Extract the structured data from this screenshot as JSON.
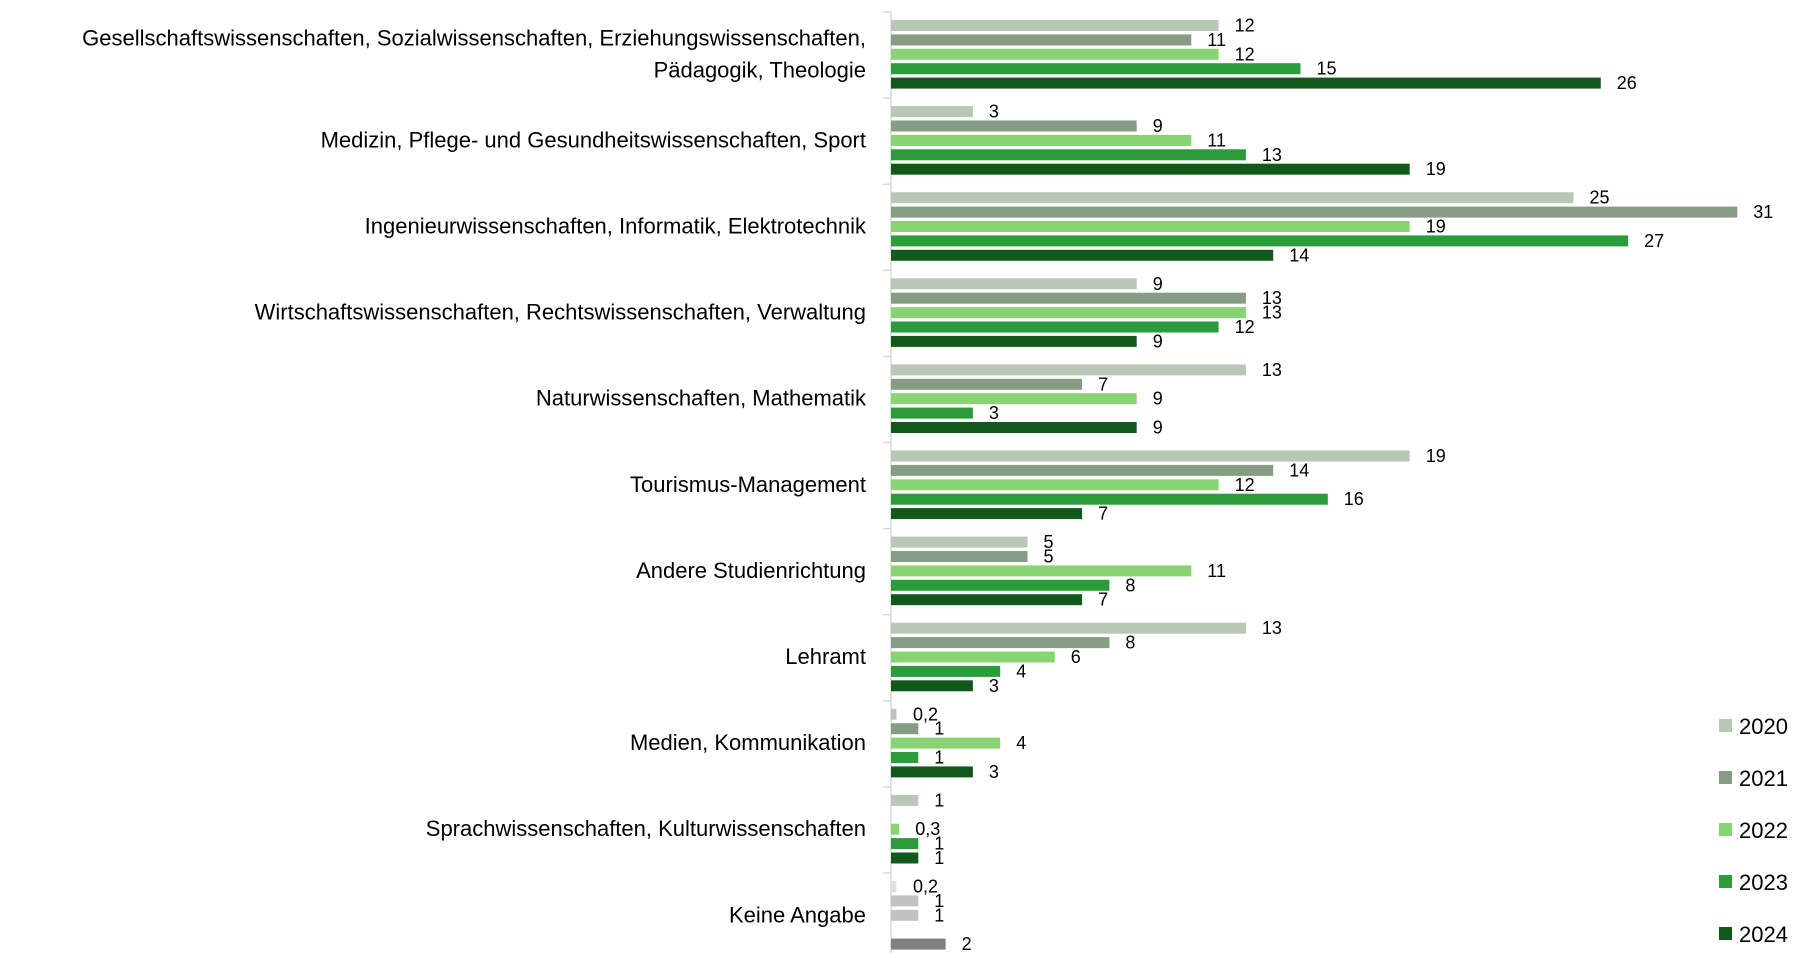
{
  "chart_data": {
    "type": "bar",
    "orientation": "horizontal",
    "grid": false,
    "legend_position": "bottom-right",
    "categories": [
      [
        "Gesellschaftswissenschaften, Sozialwissenschaften, Erziehungswissenschaften,",
        "Pädagogik, Theologie"
      ],
      [
        "Medizin, Pflege- und Gesundheitswissenschaften, Sport"
      ],
      [
        "Ingenieurwissenschaften, Informatik, Elektrotechnik"
      ],
      [
        "Wirtschaftswissenschaften, Rechtswissenschaften, Verwaltung"
      ],
      [
        "Naturwissenschaften, Mathematik"
      ],
      [
        "Tourismus-Management"
      ],
      [
        "Andere Studienrichtung"
      ],
      [
        "Lehramt"
      ],
      [
        "Medien, Kommunikation"
      ],
      [
        "Sprachwissenschaften, Kulturwissenschaften"
      ],
      [
        "Keine Angabe"
      ]
    ],
    "series": [
      {
        "name": "2020",
        "color": "#b9c7b6",
        "values": [
          12,
          3,
          25,
          9,
          13,
          19,
          5,
          13,
          0.2,
          1,
          0.2
        ],
        "labels": [
          "12",
          "3",
          "25",
          "9",
          "13",
          "19",
          "5",
          "13",
          "0,2",
          "1",
          "0,2"
        ]
      },
      {
        "name": "2021",
        "color": "#879c84",
        "values": [
          11,
          9,
          31,
          13,
          7,
          14,
          5,
          8,
          1,
          null,
          1
        ],
        "labels": [
          "11",
          "9",
          "31",
          "13",
          "7",
          "14",
          "5",
          "8",
          "1",
          "",
          "1"
        ]
      },
      {
        "name": "2022",
        "color": "#88d472",
        "values": [
          12,
          11,
          19,
          13,
          9,
          12,
          11,
          6,
          4,
          0.3,
          1
        ],
        "labels": [
          "12",
          "11",
          "19",
          "13",
          "9",
          "12",
          "11",
          "6",
          "4",
          "0,3",
          "1"
        ]
      },
      {
        "name": "2023",
        "color": "#2b9c3a",
        "values": [
          15,
          13,
          27,
          12,
          3,
          16,
          8,
          4,
          1,
          1,
          null
        ],
        "labels": [
          "15",
          "13",
          "27",
          "12",
          "3",
          "16",
          "8",
          "4",
          "1",
          "1",
          ""
        ]
      },
      {
        "name": "2024",
        "color": "#125a1c",
        "values": [
          26,
          19,
          14,
          9,
          9,
          7,
          7,
          3,
          3,
          1,
          2
        ],
        "labels": [
          "26",
          "19",
          "14",
          "9",
          "9",
          "7",
          "7",
          "3",
          "3",
          "1",
          "2"
        ]
      }
    ],
    "keine_angabe_colors": [
      "#dedede",
      "#c2c2c2",
      "#c2c2c2",
      "#ffffff",
      "#7f7f7f"
    ],
    "xlim": [
      0,
      31
    ]
  }
}
